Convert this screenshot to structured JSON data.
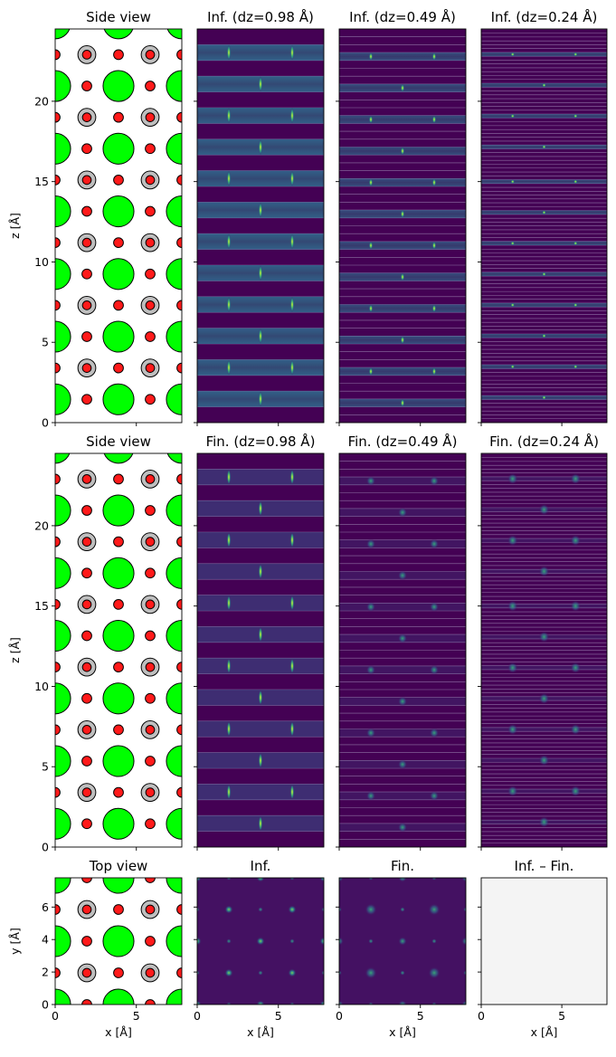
{
  "figure": {
    "background": "#ffffff",
    "colors": {
      "oxygen": "#ff1a1a",
      "heavy_atom": "#bfbfbf",
      "green_atom": "#00ff00",
      "viridis_low": "#440154",
      "viridis_high": "#fde725",
      "difference_panel": "#f4f4f4"
    }
  },
  "chart_data": [
    {
      "id": "side-top",
      "type": "atom-structure",
      "title": "Side view",
      "ylabel": "z [Å]",
      "xlim": [
        0,
        7.8
      ],
      "ylim": [
        0,
        24.5
      ],
      "yticks": [
        0,
        5,
        10,
        15,
        20
      ],
      "xticks": [
        0,
        5
      ],
      "show_xtick_labels": false,
      "show_ytick_labels": true,
      "view": "side"
    },
    {
      "id": "inf-098",
      "type": "heatmap",
      "title": "Inf. (dz=0.98 Å)",
      "dz": 0.98,
      "mode": "inf",
      "xlim": [
        0,
        7.8
      ],
      "ylim": [
        0,
        24.5
      ],
      "xticks": [
        0,
        5
      ],
      "yticks": [
        0,
        5,
        10,
        15,
        20
      ],
      "show_xtick_labels": false,
      "show_ytick_labels": false
    },
    {
      "id": "inf-049",
      "type": "heatmap",
      "title": "Inf. (dz=0.49 Å)",
      "dz": 0.49,
      "mode": "inf",
      "xlim": [
        0,
        7.8
      ],
      "ylim": [
        0,
        24.5
      ],
      "xticks": [
        0,
        5
      ],
      "yticks": [
        0,
        5,
        10,
        15,
        20
      ],
      "show_xtick_labels": false,
      "show_ytick_labels": false
    },
    {
      "id": "inf-024",
      "type": "heatmap",
      "title": "Inf. (dz=0.24 Å)",
      "dz": 0.24,
      "mode": "inf",
      "xlim": [
        0,
        7.8
      ],
      "ylim": [
        0,
        24.5
      ],
      "xticks": [
        0,
        5
      ],
      "yticks": [
        0,
        5,
        10,
        15,
        20
      ],
      "show_xtick_labels": false,
      "show_ytick_labels": false
    },
    {
      "id": "side-mid",
      "type": "atom-structure",
      "title": "Side view",
      "ylabel": "z [Å]",
      "xlim": [
        0,
        7.8
      ],
      "ylim": [
        0,
        24.5
      ],
      "yticks": [
        0,
        5,
        10,
        15,
        20
      ],
      "xticks": [
        0,
        5
      ],
      "show_xtick_labels": false,
      "show_ytick_labels": true,
      "view": "side"
    },
    {
      "id": "fin-098",
      "type": "heatmap",
      "title": "Fin. (dz=0.98 Å)",
      "dz": 0.98,
      "mode": "fin",
      "xlim": [
        0,
        7.8
      ],
      "ylim": [
        0,
        24.5
      ],
      "xticks": [
        0,
        5
      ],
      "yticks": [
        0,
        5,
        10,
        15,
        20
      ],
      "show_xtick_labels": false,
      "show_ytick_labels": false
    },
    {
      "id": "fin-049",
      "type": "heatmap",
      "title": "Fin. (dz=0.49 Å)",
      "dz": 0.49,
      "mode": "fin",
      "xlim": [
        0,
        7.8
      ],
      "ylim": [
        0,
        24.5
      ],
      "xticks": [
        0,
        5
      ],
      "yticks": [
        0,
        5,
        10,
        15,
        20
      ],
      "show_xtick_labels": false,
      "show_ytick_labels": false
    },
    {
      "id": "fin-024",
      "type": "heatmap",
      "title": "Fin. (dz=0.24 Å)",
      "dz": 0.24,
      "mode": "fin",
      "xlim": [
        0,
        7.8
      ],
      "ylim": [
        0,
        24.5
      ],
      "xticks": [
        0,
        5
      ],
      "yticks": [
        0,
        5,
        10,
        15,
        20
      ],
      "show_xtick_labels": false,
      "show_ytick_labels": false
    },
    {
      "id": "top-view",
      "type": "atom-structure",
      "title": "Top view",
      "xlabel": "x [Å]",
      "ylabel": "y [Å]",
      "xlim": [
        0,
        7.8
      ],
      "ylim": [
        0,
        7.8
      ],
      "xticks": [
        0,
        5
      ],
      "yticks": [
        0,
        2,
        4,
        6
      ],
      "show_xtick_labels": true,
      "show_ytick_labels": true,
      "view": "top"
    },
    {
      "id": "proj-inf",
      "type": "heatmap",
      "title": "Inf.",
      "xlabel": "x [Å]",
      "mode": "proj-inf",
      "xlim": [
        0,
        7.8
      ],
      "ylim": [
        0,
        7.8
      ],
      "xticks": [
        0,
        5
      ],
      "yticks": [
        0,
        2,
        4,
        6
      ],
      "show_xtick_labels": true,
      "show_ytick_labels": false
    },
    {
      "id": "proj-fin",
      "type": "heatmap",
      "title": "Fin.",
      "xlabel": "x [Å]",
      "mode": "proj-fin",
      "xlim": [
        0,
        7.8
      ],
      "ylim": [
        0,
        7.8
      ],
      "xticks": [
        0,
        5
      ],
      "yticks": [
        0,
        2,
        4,
        6
      ],
      "show_xtick_labels": true,
      "show_ytick_labels": false
    },
    {
      "id": "proj-diff",
      "type": "heatmap",
      "title": "Inf. – Fin.",
      "xlabel": "x [Å]",
      "mode": "diff",
      "xlim": [
        0,
        7.8
      ],
      "ylim": [
        0,
        7.8
      ],
      "xticks": [
        0,
        5
      ],
      "yticks": [
        0,
        2,
        4,
        6
      ],
      "show_xtick_labels": true,
      "show_ytick_labels": false
    }
  ]
}
